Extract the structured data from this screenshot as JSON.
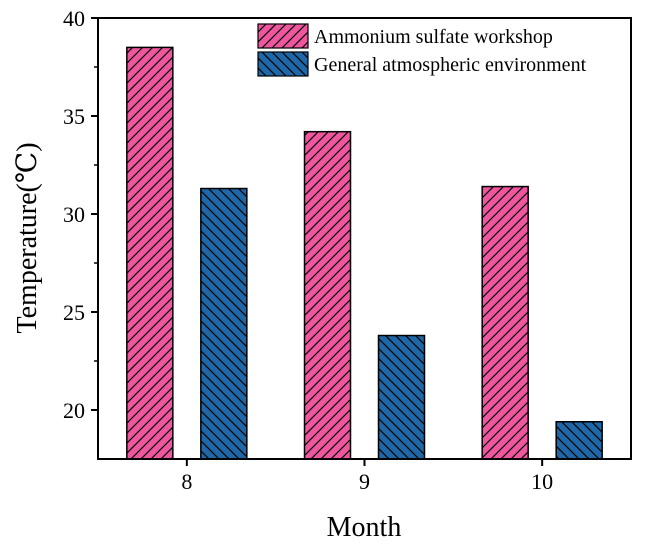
{
  "colors": {
    "series_a": "#F0559F",
    "series_b": "#1E67A8",
    "hatch": "#000000",
    "axis": "#000000",
    "background": "#ffffff"
  },
  "chart_data": {
    "type": "bar",
    "xlabel": "Month",
    "ylabel": "Temperature(℃)",
    "categories": [
      "8",
      "9",
      "10"
    ],
    "ylim": [
      17.5,
      40
    ],
    "yticks": [
      20,
      25,
      30,
      35,
      40
    ],
    "grid": false,
    "legend_position": "top-right",
    "series": [
      {
        "name": "Ammonium sulfate workshop",
        "values": [
          38.5,
          34.2,
          31.4
        ],
        "color": "#F0559F",
        "hatch": "forward-diagonal"
      },
      {
        "name": "General atmospheric environment",
        "values": [
          31.3,
          23.8,
          19.4
        ],
        "color": "#1E67A8",
        "hatch": "backward-diagonal"
      }
    ]
  }
}
